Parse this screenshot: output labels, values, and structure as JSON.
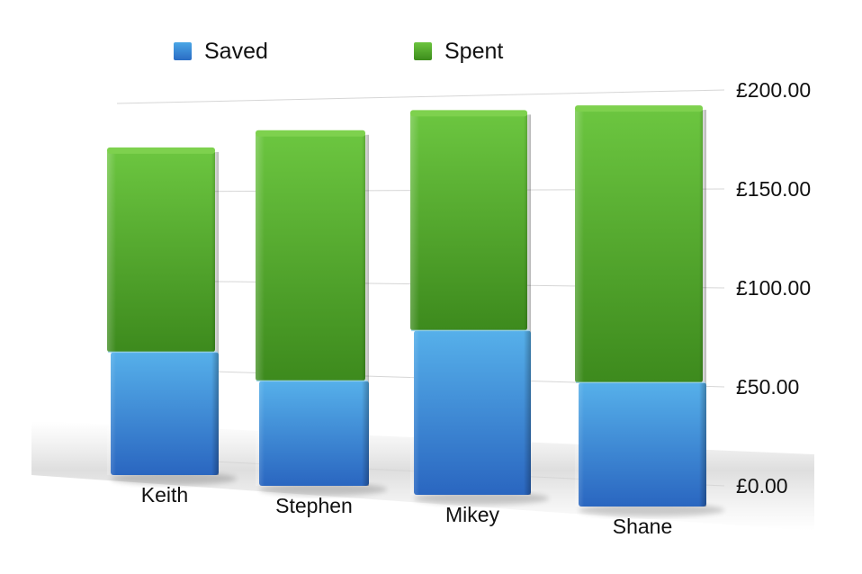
{
  "chart_data": {
    "type": "bar",
    "stacked": true,
    "three_d": true,
    "categories": [
      "Keith",
      "Stephen",
      "Mikey",
      "Shane"
    ],
    "series": [
      {
        "name": "Saved",
        "values": [
          67,
          55,
          83,
          60
        ],
        "color": "#3b8fdc"
      },
      {
        "name": "Spent",
        "values": [
          110,
          130,
          110,
          133
        ],
        "color": "#58b030"
      }
    ],
    "y_ticks": [
      "£0.00",
      "£50.00",
      "£100.00",
      "£150.00",
      "£200.00"
    ],
    "ylim": [
      0,
      200
    ],
    "grid": true,
    "legend_position": "top"
  }
}
